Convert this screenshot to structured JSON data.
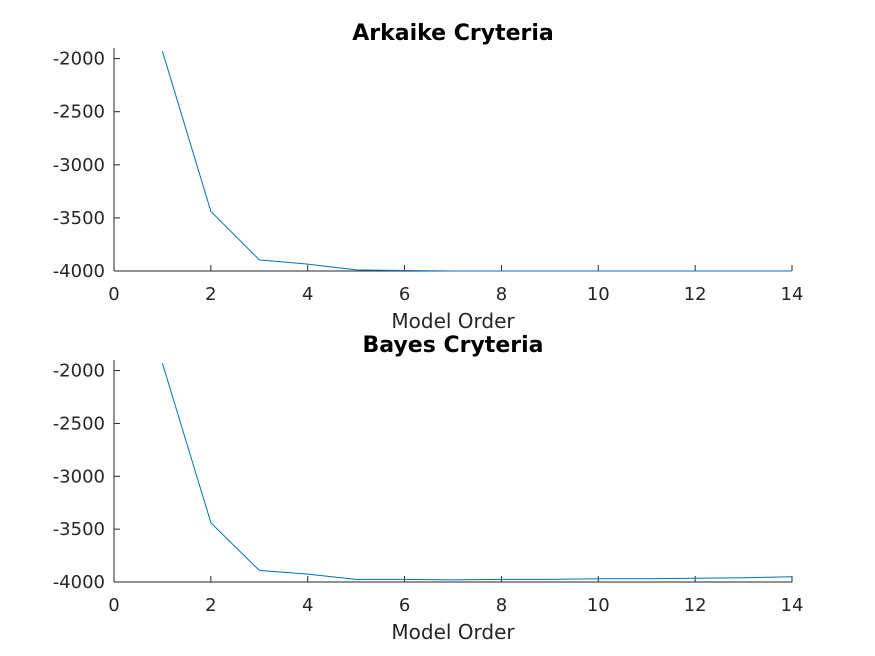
{
  "chart_data": [
    {
      "type": "line",
      "title": "Arkaike Cryteria",
      "xlabel": "Model Order",
      "ylabel": "",
      "xlim": [
        0,
        14
      ],
      "ylim": [
        -4000,
        -1900
      ],
      "xticks": [
        0,
        2,
        4,
        6,
        8,
        10,
        12,
        14
      ],
      "yticks": [
        -2000,
        -2500,
        -3000,
        -3500,
        -4000
      ],
      "grid": false,
      "series": [
        {
          "color": "#0072BD",
          "x": [
            1,
            2,
            3,
            4,
            5,
            6,
            7,
            8,
            9,
            10,
            11,
            12,
            13,
            14
          ],
          "y": [
            -1930,
            -3440,
            -3895,
            -3935,
            -3990,
            -3995,
            -4000,
            -4000,
            -4000,
            -4000,
            -4000,
            -4000,
            -4000,
            -4000
          ]
        }
      ]
    },
    {
      "type": "line",
      "title": "Bayes Cryteria",
      "xlabel": "Model Order",
      "ylabel": "",
      "xlim": [
        0,
        14
      ],
      "ylim": [
        -4000,
        -1900
      ],
      "xticks": [
        0,
        2,
        4,
        6,
        8,
        10,
        12,
        14
      ],
      "yticks": [
        -2000,
        -2500,
        -3000,
        -3500,
        -4000
      ],
      "grid": false,
      "series": [
        {
          "color": "#0072BD",
          "x": [
            1,
            2,
            3,
            4,
            5,
            6,
            7,
            8,
            9,
            10,
            11,
            12,
            13,
            14
          ],
          "y": [
            -1930,
            -3440,
            -3890,
            -3925,
            -3975,
            -3975,
            -3980,
            -3975,
            -3975,
            -3970,
            -3970,
            -3965,
            -3960,
            -3950
          ]
        }
      ]
    }
  ]
}
